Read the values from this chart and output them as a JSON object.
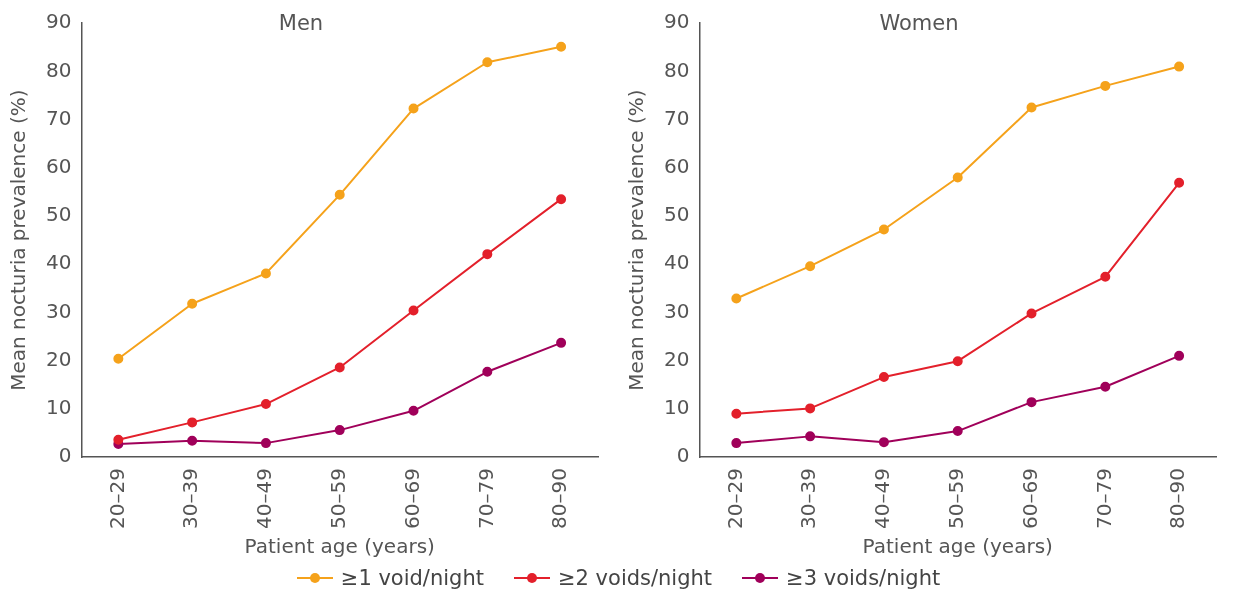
{
  "chart_data": [
    {
      "type": "line",
      "title": "Men",
      "xlabel": "Patient age (years)",
      "ylabel": "Mean nocturia prevalence (%)",
      "categories": [
        "20–29",
        "30–39",
        "40–49",
        "50–59",
        "60–69",
        "70–79",
        "80–90"
      ],
      "ylim": [
        0,
        90
      ],
      "yticks": [
        0,
        10,
        20,
        30,
        40,
        50,
        60,
        70,
        80,
        90
      ],
      "grid": false,
      "marker": "circle",
      "line_style": "solid",
      "legend": "bottom",
      "series": [
        {
          "name": "≥1 void/night",
          "color": "#f5a21b",
          "values": [
            20.4,
            31.8,
            38.1,
            54.4,
            72.3,
            81.9,
            85.1
          ]
        },
        {
          "name": "≥2 voids/night",
          "color": "#e3202b",
          "values": [
            3.6,
            7.2,
            11.0,
            18.6,
            30.4,
            42.1,
            53.5
          ]
        },
        {
          "name": "≥3 voids/night",
          "color": "#a0005a",
          "values": [
            2.7,
            3.4,
            2.9,
            5.6,
            9.6,
            17.7,
            23.7
          ]
        }
      ]
    },
    {
      "type": "line",
      "title": "Women",
      "xlabel": "Patient age (years)",
      "ylabel": "Mean nocturia prevalence (%)",
      "categories": [
        "20–29",
        "30–39",
        "40–49",
        "50–59",
        "60–69",
        "70–79",
        "80–90"
      ],
      "ylim": [
        0,
        90
      ],
      "yticks": [
        0,
        10,
        20,
        30,
        40,
        50,
        60,
        70,
        80,
        90
      ],
      "grid": false,
      "marker": "circle",
      "line_style": "solid",
      "series": [
        {
          "color": "#f5a21b",
          "values": [
            32.9,
            39.6,
            47.2,
            58.0,
            72.5,
            77.0,
            81.0
          ]
        },
        {
          "color": "#e3202b",
          "values": [
            9.0,
            10.1,
            16.6,
            19.9,
            29.8,
            37.4,
            56.9
          ]
        },
        {
          "color": "#a0005a",
          "values": [
            2.9,
            4.3,
            3.1,
            5.4,
            11.4,
            14.6,
            21.0
          ]
        }
      ]
    }
  ]
}
